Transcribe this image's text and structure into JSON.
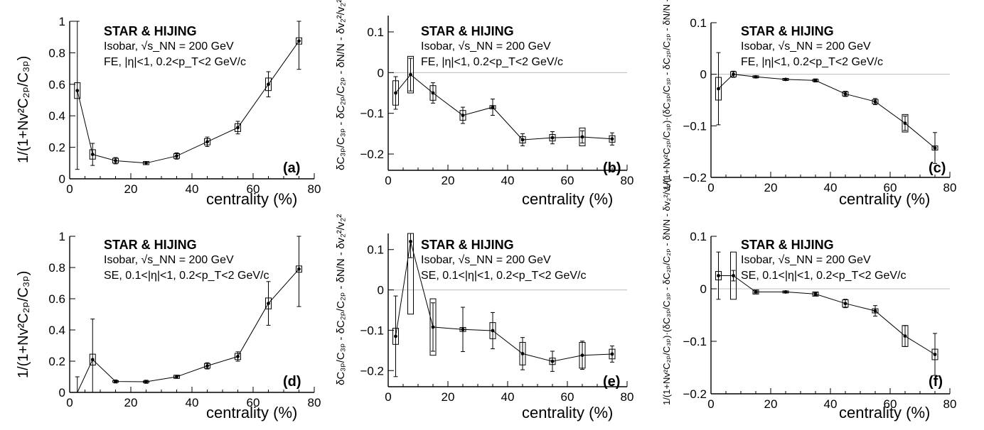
{
  "chart_data": [
    {
      "id": "a",
      "type": "line",
      "tag": "(a)",
      "ylabel": "1/(1+Nv²C₂ₚ/C₃ₚ)",
      "xlabel": "centrality (%)",
      "title_line1": "STAR & HIJING",
      "title_line2": "Isobar, √s_NN = 200 GeV",
      "title_line3": "FE, |η|<1, 0.2<p_T<2 GeV/c",
      "xlim": [
        0,
        80
      ],
      "ylim": [
        0,
        1
      ],
      "xticks": [
        "0",
        "20",
        "40",
        "60",
        "80"
      ],
      "yticks": [
        "0",
        "0.2",
        "0.4",
        "0.6",
        "0.8",
        "1"
      ],
      "x": [
        2.5,
        7.5,
        15,
        25,
        35,
        45,
        55,
        65,
        75
      ],
      "y": [
        0.56,
        0.155,
        0.115,
        0.1,
        0.145,
        0.235,
        0.325,
        0.6,
        0.875
      ],
      "stat_err": [
        0.5,
        0.07,
        0.02,
        0.01,
        0.02,
        0.03,
        0.04,
        0.08,
        0.18
      ],
      "sys_err": [
        0.05,
        0.03,
        0.015,
        0.01,
        0.015,
        0.02,
        0.025,
        0.04,
        0.02
      ]
    },
    {
      "id": "b",
      "type": "line",
      "tag": "(b)",
      "ylabel": "δC₃ₚ/C₃ₚ - δC₂ₚ/C₂ₚ - δN/N - δv₂²/v₂²",
      "xlabel": "centrality (%)",
      "title_line1": "STAR & HIJING",
      "title_line2": "Isobar, √s_NN = 200 GeV",
      "title_line3": "FE, |η|<1, 0.2<p_T<2 GeV/c",
      "xlim": [
        0,
        80
      ],
      "ylim": [
        -0.24,
        0.14
      ],
      "xticks": [
        "0",
        "20",
        "40",
        "60",
        "80"
      ],
      "yticks": [
        "−0.2",
        "−0.1",
        "0",
        "0.1"
      ],
      "x": [
        2.5,
        7.5,
        15,
        25,
        35,
        45,
        55,
        65,
        75
      ],
      "y": [
        -0.05,
        -0.005,
        -0.05,
        -0.105,
        -0.085,
        -0.165,
        -0.16,
        -0.158,
        -0.163
      ],
      "stat_err": [
        0.04,
        0.04,
        0.025,
        0.02,
        0.02,
        0.015,
        0.015,
        0.015,
        0.015
      ],
      "sys_err": [
        0.03,
        0.045,
        0.018,
        0.012,
        0.004,
        0.008,
        0.008,
        0.022,
        0.008
      ]
    },
    {
      "id": "c",
      "type": "line",
      "tag": "(c)",
      "ylabel": "1/(1+Nv²C₂ₚ/C₃ₚ)·(δC₃ₚ/C₃ₚ - δC₂ₚ/C₂ₚ - δN/N - δv₂²/v₂²)",
      "xlabel": "centrality (%)",
      "title_line1": "STAR & HIJING",
      "title_line2": "Isobar, √s_NN = 200 GeV",
      "title_line3": "FE, |η|<1, 0.2<p_T<2 GeV/c",
      "xlim": [
        0,
        80
      ],
      "ylim": [
        -0.2,
        0.1
      ],
      "xticks": [
        "0",
        "20",
        "40",
        "60",
        "80"
      ],
      "yticks": [
        "−0.2",
        "−0.1",
        "0",
        "0.1"
      ],
      "x": [
        2.5,
        7.5,
        15,
        25,
        35,
        45,
        55,
        65,
        75
      ],
      "y": [
        -0.028,
        0.0,
        -0.005,
        -0.01,
        -0.012,
        -0.038,
        -0.053,
        -0.095,
        -0.143
      ],
      "stat_err": [
        0.07,
        0.006,
        0.002,
        0.002,
        0.003,
        0.005,
        0.006,
        0.014,
        0.03
      ],
      "sys_err": [
        0.022,
        0.005,
        0.002,
        0.002,
        0.002,
        0.004,
        0.004,
        0.017,
        0.004
      ]
    },
    {
      "id": "d",
      "type": "line",
      "tag": "(d)",
      "ylabel": "1/(1+Nv²C₂ₚ/C₃ₚ)",
      "xlabel": "centrality (%)",
      "title_line1": "STAR & HIJING",
      "title_line2": "Isobar, √s_NN = 200 GeV",
      "title_line3": "SE, 0.1<|η|<1, 0.2<p_T<2 GeV/c",
      "xlim": [
        0,
        80
      ],
      "ylim": [
        0,
        1
      ],
      "xticks": [
        "0",
        "20",
        "40",
        "60",
        "80"
      ],
      "yticks": [
        "0",
        "0.2",
        "0.4",
        "0.6",
        "0.8",
        "1"
      ],
      "x": [
        2.5,
        7.5,
        15,
        25,
        35,
        45,
        55,
        65,
        75
      ],
      "y": [
        -0.1,
        0.21,
        0.07,
        0.068,
        0.1,
        0.17,
        0.23,
        0.57,
        0.79
      ],
      "stat_err": [
        0.2,
        0.26,
        0.01,
        0.01,
        0.01,
        0.02,
        0.03,
        0.14,
        0.24
      ],
      "sys_err": [
        0.0,
        0.035,
        0.005,
        0.005,
        0.01,
        0.015,
        0.02,
        0.035,
        0.02
      ]
    },
    {
      "id": "e",
      "type": "line",
      "tag": "(e)",
      "ylabel": "δC₃ₚ/C₃ₚ - δC₂ₚ/C₂ₚ - δN/N - δv₂²/v₂²",
      "xlabel": "centrality (%)",
      "title_line1": "STAR & HIJING",
      "title_line2": "Isobar, √s_NN = 200 GeV",
      "title_line3": "SE, 0.1<|η|<1, 0.2<p_T<2 GeV/c",
      "xlim": [
        0,
        80
      ],
      "ylim": [
        -0.24,
        0.14
      ],
      "xticks": [
        "0",
        "20",
        "40",
        "60",
        "80"
      ],
      "yticks": [
        "−0.2",
        "−0.1",
        "0",
        "0.1"
      ],
      "x": [
        2.5,
        7.5,
        15,
        25,
        35,
        45,
        55,
        65,
        75
      ],
      "y": [
        -0.115,
        0.12,
        -0.092,
        -0.098,
        -0.101,
        -0.158,
        -0.177,
        -0.162,
        -0.159
      ],
      "stat_err": [
        0.1,
        0.04,
        0.06,
        0.055,
        0.045,
        0.04,
        0.025,
        0.035,
        0.02
      ],
      "sys_err": [
        0.02,
        0.18,
        0.07,
        0.005,
        0.02,
        0.028,
        0.008,
        0.032,
        0.012
      ]
    },
    {
      "id": "f",
      "type": "line",
      "tag": "(f)",
      "ylabel": "1/(1+Nv²C₂ₚ/C₃ₚ)·(δC₃ₚ/C₃ₚ - δC₂ₚ/C₂ₚ - δN/N - δv₂²/v₂²)",
      "xlabel": "centrality (%)",
      "title_line1": "STAR & HIJING",
      "title_line2": "Isobar, √s_NN = 200 GeV",
      "title_line3": "SE, 0.1<|η|<1, 0.2<p_T<2 GeV/c",
      "xlim": [
        0,
        80
      ],
      "ylim": [
        -0.2,
        0.1
      ],
      "xticks": [
        "0",
        "20",
        "40",
        "60",
        "80"
      ],
      "yticks": [
        "−0.2",
        "−0.1",
        "0",
        "0.1"
      ],
      "x": [
        2.5,
        7.5,
        15,
        25,
        35,
        45,
        55,
        65,
        75
      ],
      "y": [
        0.025,
        0.025,
        -0.006,
        -0.006,
        -0.01,
        -0.028,
        -0.042,
        -0.09,
        -0.125
      ],
      "stat_err": [
        0.045,
        0.01,
        0.002,
        0.002,
        0.003,
        0.008,
        0.01,
        0.02,
        0.04
      ],
      "sys_err": [
        0.008,
        0.045,
        0.004,
        0.002,
        0.004,
        0.007,
        0.004,
        0.02,
        0.01
      ]
    }
  ]
}
